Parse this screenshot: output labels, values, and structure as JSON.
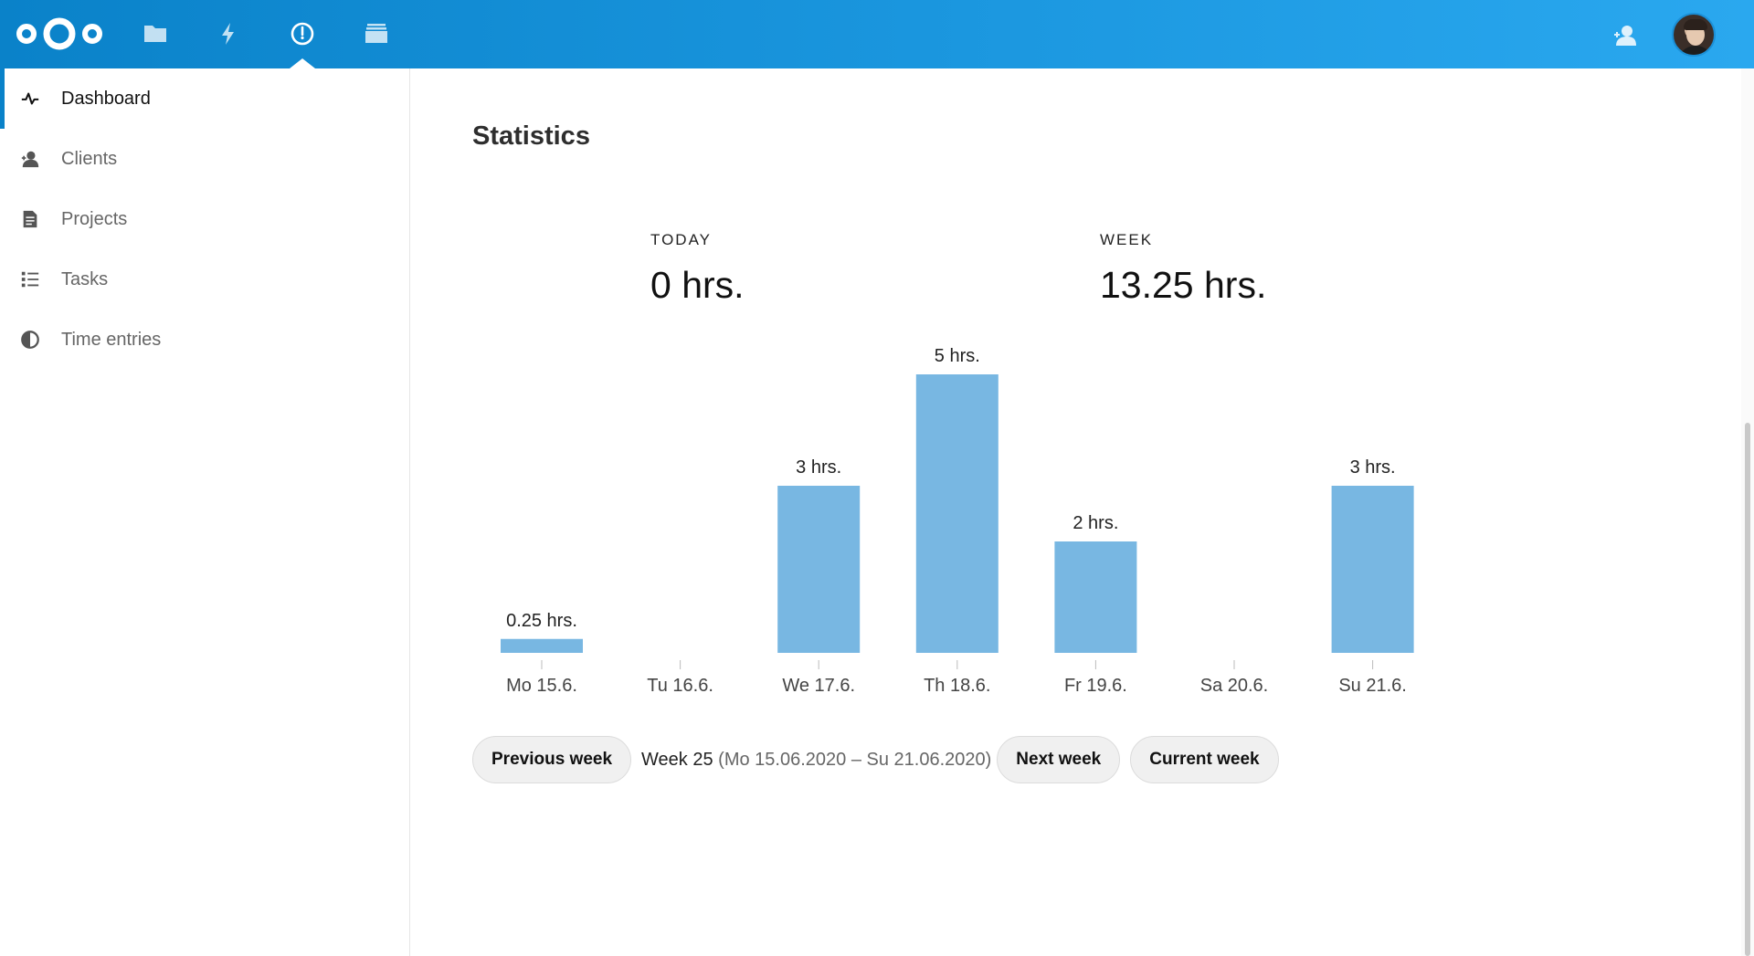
{
  "header": {
    "apps": [
      {
        "name": "files",
        "icon": "folder-icon"
      },
      {
        "name": "activity",
        "icon": "lightning-icon"
      },
      {
        "name": "timemanager",
        "icon": "clock-icon",
        "active": true
      },
      {
        "name": "deck",
        "icon": "deck-icon"
      }
    ],
    "contacts_icon": "contacts-icon",
    "accent_color": "#0a82c9"
  },
  "sidebar": {
    "items": [
      {
        "label": "Dashboard",
        "icon": "pulse-icon",
        "active": true
      },
      {
        "label": "Clients",
        "icon": "user-icon"
      },
      {
        "label": "Projects",
        "icon": "document-icon"
      },
      {
        "label": "Tasks",
        "icon": "checklist-icon"
      },
      {
        "label": "Time entries",
        "icon": "pie-icon"
      }
    ]
  },
  "main": {
    "title": "Statistics",
    "today": {
      "label": "TODAY",
      "value": "0 hrs."
    },
    "week": {
      "label": "WEEK",
      "value": "13.25 hrs."
    }
  },
  "chart_data": {
    "type": "bar",
    "categories": [
      "Mo 15.6.",
      "Tu 16.6.",
      "We 17.6.",
      "Th 18.6.",
      "Fr 19.6.",
      "Sa 20.6.",
      "Su 21.6."
    ],
    "values": [
      0.25,
      0,
      3,
      5,
      2,
      0,
      3
    ],
    "data_labels": [
      "0.25 hrs.",
      "",
      "3 hrs.",
      "5 hrs.",
      "2 hrs.",
      "",
      "3 hrs."
    ],
    "ylim": [
      0,
      5
    ],
    "color": "#78b7e2",
    "grid": false
  },
  "week_nav": {
    "previous_label": "Previous week",
    "week_label": "Week 25",
    "week_range": "(Mo 15.06.2020 – Su 21.06.2020)",
    "next_label": "Next week",
    "current_label": "Current week"
  }
}
